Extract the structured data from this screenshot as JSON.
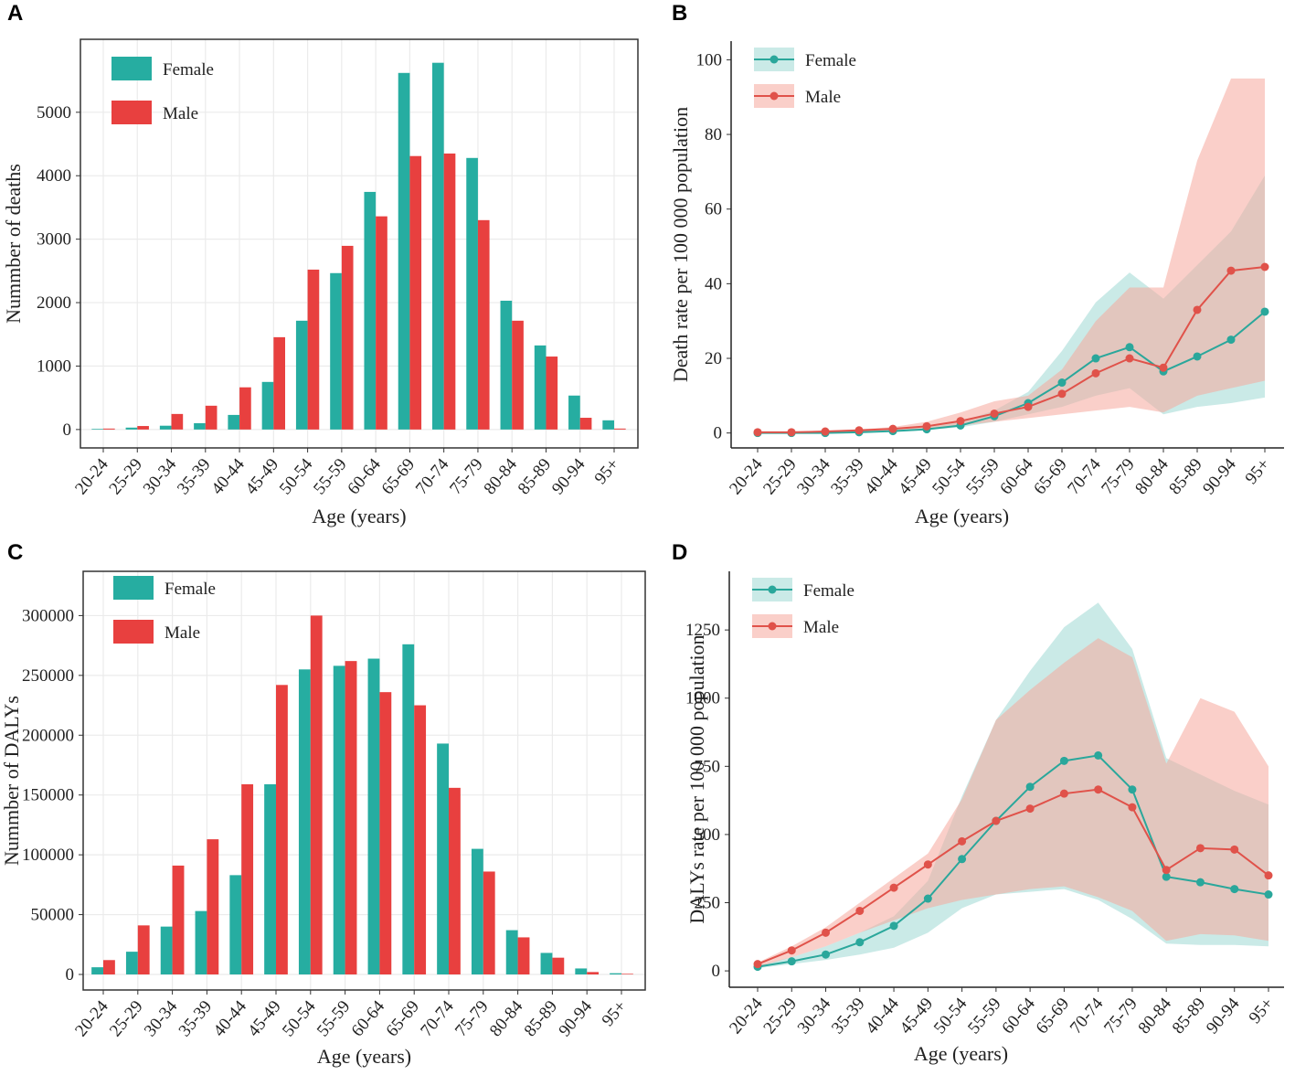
{
  "chart_data": [
    {
      "type": "bar",
      "panel": "A",
      "ylabel": "Nummber of deaths",
      "xlabel": "Age (years)",
      "categories": [
        "20-24",
        "25-29",
        "30-34",
        "35-39",
        "40-44",
        "45-49",
        "50-54",
        "55-59",
        "60-64",
        "65-69",
        "70-74",
        "75-79",
        "80-84",
        "85-89",
        "90-94",
        "95+"
      ],
      "series": [
        {
          "name": "Female",
          "color": "#26ada1",
          "values": [
            10,
            30,
            60,
            100,
            230,
            750,
            1715,
            2465,
            3745,
            5620,
            5780,
            4280,
            2030,
            1325,
            535,
            145
          ]
        },
        {
          "name": "Male",
          "color": "#e8403f",
          "values": [
            15,
            55,
            245,
            375,
            665,
            1455,
            2520,
            2895,
            3360,
            4310,
            4350,
            3300,
            1715,
            1150,
            185,
            15
          ]
        }
      ],
      "ylim": [
        -290,
        6150
      ],
      "yticks": [
        0,
        1000,
        2000,
        3000,
        4000,
        5000
      ],
      "grid": true,
      "legend": "top-left"
    },
    {
      "type": "line",
      "panel": "B",
      "ylabel": "Death rate per 100 000 population",
      "xlabel": "Age (years)",
      "categories": [
        "20-24",
        "25-29",
        "30-34",
        "35-39",
        "40-44",
        "45-49",
        "50-54",
        "55-59",
        "60-64",
        "65-69",
        "70-74",
        "75-79",
        "80-84",
        "85-89",
        "90-94",
        "95+"
      ],
      "series": [
        {
          "name": "Female",
          "color": "#2aa79b",
          "band_color": "#9fd8d3",
          "values": [
            0,
            0,
            0,
            0.2,
            0.5,
            1,
            2,
            4.5,
            8,
            13.5,
            20,
            23,
            16.5,
            20.5,
            25,
            32.5
          ],
          "lower": [
            0,
            0,
            0,
            0.1,
            0.3,
            0.8,
            1.5,
            3,
            5,
            7,
            10,
            12,
            5,
            7,
            8,
            9.5
          ],
          "upper": [
            0.1,
            0.1,
            0.2,
            0.4,
            0.8,
            1.5,
            3,
            6,
            11,
            22,
            35,
            43,
            36,
            45,
            54,
            69
          ]
        },
        {
          "name": "Male",
          "color": "#e0524a",
          "band_color": "#f6a89c",
          "values": [
            0.2,
            0.2,
            0.4,
            0.7,
            1.1,
            1.8,
            3.2,
            5.2,
            7,
            10.5,
            16,
            20,
            17.5,
            33,
            43.5,
            44.5
          ],
          "lower": [
            0.1,
            0.1,
            0.2,
            0.4,
            0.7,
            1,
            2,
            3,
            4,
            5,
            6,
            7,
            5.5,
            10,
            12,
            14
          ],
          "upper": [
            0.3,
            0.3,
            0.6,
            1,
            1.6,
            3,
            5.5,
            8.5,
            10,
            17,
            30,
            39,
            39,
            73,
            95,
            95
          ]
        }
      ],
      "ylim": [
        -4,
        105
      ],
      "yticks": [
        0,
        20,
        40,
        60,
        80,
        100
      ],
      "grid": false,
      "legend": "top-left"
    },
    {
      "type": "bar",
      "panel": "C",
      "ylabel": "Nummber of DALYs",
      "xlabel": "Age (years)",
      "categories": [
        "20-24",
        "25-29",
        "30-34",
        "35-39",
        "40-44",
        "45-49",
        "50-54",
        "55-59",
        "60-64",
        "65-69",
        "70-74",
        "75-79",
        "80-84",
        "85-89",
        "90-94",
        "95+"
      ],
      "series": [
        {
          "name": "Female",
          "color": "#26ada1",
          "values": [
            6000,
            19000,
            40000,
            53000,
            83000,
            159000,
            255000,
            258000,
            264000,
            276000,
            193000,
            105000,
            37000,
            18000,
            5000,
            1000
          ]
        },
        {
          "name": "Male",
          "color": "#e8403f",
          "values": [
            12000,
            41000,
            91000,
            113000,
            159000,
            242000,
            300000,
            262000,
            236000,
            225000,
            156000,
            86000,
            31000,
            14000,
            2000,
            500
          ]
        }
      ],
      "ylim": [
        -13000,
        337000
      ],
      "yticks": [
        0,
        50000,
        100000,
        150000,
        200000,
        250000,
        300000
      ],
      "grid": true,
      "legend": "top-left"
    },
    {
      "type": "line",
      "panel": "D",
      "ylabel": "DALYs rate per 100 000 population",
      "xlabel": "Age (years)",
      "categories": [
        "20-24",
        "25-29",
        "30-34",
        "35-39",
        "40-44",
        "45-49",
        "50-54",
        "55-59",
        "60-64",
        "65-69",
        "70-74",
        "75-79",
        "80-84",
        "85-89",
        "90-94",
        "95+"
      ],
      "series": [
        {
          "name": "Female",
          "color": "#2aa79b",
          "band_color": "#9fd8d3",
          "values": [
            15,
            35,
            60,
            105,
            165,
            265,
            410,
            550,
            675,
            770,
            790,
            665,
            345,
            325,
            300,
            280
          ],
          "lower": [
            10,
            25,
            40,
            60,
            85,
            140,
            230,
            280,
            290,
            300,
            260,
            190,
            100,
            95,
            95,
            90
          ],
          "upper": [
            20,
            50,
            90,
            140,
            200,
            330,
            640,
            920,
            1100,
            1260,
            1350,
            1180,
            780,
            720,
            660,
            610
          ]
        },
        {
          "name": "Male",
          "color": "#e0524a",
          "band_color": "#f6a89c",
          "values": [
            25,
            75,
            140,
            220,
            305,
            390,
            475,
            550,
            595,
            650,
            665,
            600,
            370,
            450,
            445,
            350
          ],
          "lower": [
            15,
            50,
            90,
            140,
            185,
            230,
            260,
            280,
            300,
            310,
            270,
            220,
            110,
            135,
            130,
            110
          ],
          "upper": [
            30,
            90,
            160,
            250,
            340,
            430,
            630,
            920,
            1030,
            1130,
            1220,
            1150,
            760,
            1000,
            950,
            750
          ]
        }
      ],
      "ylim": [
        -60,
        1465
      ],
      "yticks": [
        0,
        250,
        500,
        750,
        1000,
        1250
      ],
      "grid": false,
      "legend": "top-left"
    }
  ]
}
